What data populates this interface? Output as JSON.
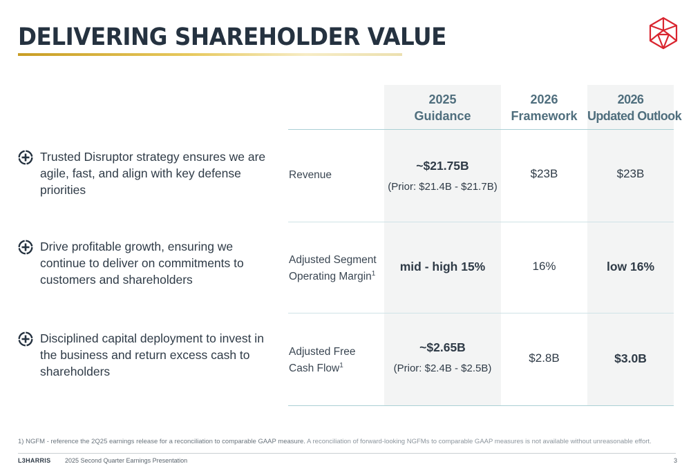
{
  "title": "DELIVERING SHAREHOLDER VALUE",
  "colors": {
    "accent_gold": "#c89d24",
    "logo_red": "#d9252f",
    "header_teal": "#4f6e7d"
  },
  "bullets": [
    {
      "icon": "plus-circle-icon",
      "text": "Trusted Disruptor strategy ensures we are agile, fast, and align with key defense priorities"
    },
    {
      "icon": "plus-circle-icon",
      "text": "Drive profitable growth, ensuring we continue to deliver on commitments to customers and shareholders"
    },
    {
      "icon": "plus-circle-icon",
      "text": "Disciplined capital deployment to invest in the business and return excess cash to shareholders"
    }
  ],
  "table": {
    "columns": [
      {
        "line1": "2025",
        "line2": "Guidance"
      },
      {
        "line1": "2026",
        "line2": "Framework"
      },
      {
        "line1": "2026",
        "line2": "Updated Outlook"
      }
    ],
    "rows": [
      {
        "label_line1": "Revenue",
        "label_line2": "",
        "footnote": "",
        "guidance": "~$21.75B",
        "guidance_prior": "(Prior: $21.4B - $21.7B)",
        "framework": "$23B",
        "outlook": "$23B"
      },
      {
        "label_line1": "Adjusted Segment",
        "label_line2": "Operating Margin",
        "footnote": "1",
        "guidance": "mid - high 15%",
        "guidance_prior": "",
        "framework": "16%",
        "outlook": "low 16%"
      },
      {
        "label_line1": "Adjusted Free",
        "label_line2": "Cash Flow",
        "footnote": "1",
        "guidance": "~$2.65B",
        "guidance_prior": "(Prior: $2.4B - $2.5B)",
        "framework": "$2.8B",
        "outlook": "$3.0B"
      }
    ]
  },
  "footnote": {
    "part1": "1) NGFM - reference the 2Q25 earnings release for a reconciliation to comparable GAAP measure.",
    "part2": "A reconciliation of forward-looking NGFMs to comparable GAAP measures is not available without unreasonable effort."
  },
  "footer": {
    "brand": "L3HARRIS",
    "presentation": "2025 Second Quarter Earnings Presentation",
    "page": "3"
  }
}
